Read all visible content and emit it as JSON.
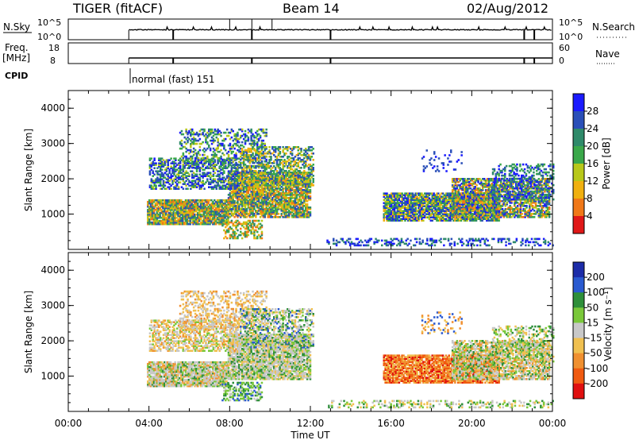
{
  "header": {
    "radar": "TIGER (fitACF)",
    "beam": "Beam 14",
    "date": "02/Aug/2012"
  },
  "status_panels": {
    "nsky_label": "N.Sky",
    "nsky_ticks": [
      "10^5",
      "10^0"
    ],
    "nsearch_label": "N.Search",
    "nsearch_ticks": [
      "10^5",
      "10^0"
    ],
    "freq_label_1": "Freq.",
    "freq_label_2": "[MHz]",
    "freq_ticks": [
      "18",
      "8"
    ],
    "nave_label": "Nave",
    "nave_ticks": [
      "60",
      "0"
    ],
    "cpid_label": "CPID",
    "cpid_value": "normal (fast) 151"
  },
  "chart_data": [
    {
      "type": "heatmap",
      "name": "power",
      "ylabel": "Slant Range [km]",
      "yticks": [
        1000,
        2000,
        3000,
        4000
      ],
      "ylim": [
        0,
        4500
      ],
      "colorbar_label": "Power [dB]",
      "colorbar_ticks": [
        "4",
        "8",
        "12",
        "16",
        "20",
        "24",
        "28"
      ],
      "colors": [
        "#1a1aff",
        "#2a4fb8",
        "#2f8a6a",
        "#3aa84a",
        "#b8c81a",
        "#f0b010",
        "#f07818",
        "#e01818"
      ]
    },
    {
      "type": "heatmap",
      "name": "velocity",
      "ylabel": "Slant Range [km]",
      "yticks": [
        1000,
        2000,
        3000,
        4000
      ],
      "ylim": [
        0,
        4500
      ],
      "colorbar_label": "Velocity [m s⁻¹]",
      "colorbar_ticks": [
        "200",
        "100",
        "50",
        "15",
        "-15",
        "-50",
        "-100",
        "-200"
      ],
      "colors": [
        "#1c2ca8",
        "#2a5ad0",
        "#2e8f3a",
        "#7ac83a",
        "#c8c8c8",
        "#f0c050",
        "#f09030",
        "#f05a10",
        "#e01010"
      ]
    }
  ],
  "x_axis": {
    "ticks": [
      "00:00",
      "04:00",
      "08:00",
      "12:00",
      "16:00",
      "20:00",
      "00:00"
    ],
    "label": "Time UT",
    "range_hours": [
      0,
      24
    ]
  },
  "regions": [
    {
      "t0": 3.9,
      "t1": 7.9,
      "r0": 700,
      "r1": 1400,
      "p": 0.9,
      "pal": [
        1,
        2,
        3,
        4,
        5,
        6
      ],
      "vel": [
        3,
        4,
        4,
        4,
        5,
        6,
        2
      ]
    },
    {
      "t0": 7.9,
      "t1": 12.0,
      "r0": 900,
      "r1": 2200,
      "p": 0.85,
      "pal": [
        1,
        2,
        3,
        4,
        5,
        6
      ],
      "vel": [
        4,
        4,
        4,
        5,
        3,
        2
      ]
    },
    {
      "t0": 4.0,
      "t1": 8.5,
      "r0": 1700,
      "r1": 2600,
      "p": 0.55,
      "pal": [
        0,
        1,
        1,
        2,
        3,
        4
      ],
      "vel": [
        5,
        5,
        6,
        4,
        4,
        3
      ]
    },
    {
      "t0": 5.5,
      "t1": 9.8,
      "r0": 2300,
      "r1": 3400,
      "p": 0.35,
      "pal": [
        0,
        1,
        2,
        3,
        4
      ],
      "vel": [
        5,
        6,
        5,
        4,
        4
      ]
    },
    {
      "t0": 8.5,
      "t1": 12.1,
      "r0": 1800,
      "r1": 2900,
      "p": 0.5,
      "pal": [
        1,
        2,
        3,
        4,
        5
      ],
      "vel": [
        4,
        4,
        5,
        2,
        3,
        1
      ]
    },
    {
      "t0": 7.6,
      "t1": 9.6,
      "r0": 300,
      "r1": 800,
      "p": 0.45,
      "pal": [
        2,
        3,
        4,
        5,
        6
      ],
      "vel": [
        3,
        3,
        2,
        4,
        1
      ]
    },
    {
      "t0": 15.6,
      "t1": 21.3,
      "r0": 800,
      "r1": 1600,
      "p": 0.85,
      "pal": [
        0,
        1,
        2,
        3,
        4,
        5
      ],
      "vel": [
        6,
        7,
        7,
        6,
        8,
        5
      ]
    },
    {
      "t0": 19.0,
      "t1": 23.8,
      "r0": 900,
      "r1": 2000,
      "p": 0.7,
      "pal": [
        0,
        1,
        2,
        3,
        4,
        5,
        6
      ],
      "vel": [
        4,
        4,
        3,
        5,
        6,
        2
      ]
    },
    {
      "t0": 21.0,
      "t1": 24.0,
      "r0": 1400,
      "r1": 2400,
      "p": 0.35,
      "pal": [
        0,
        1,
        2,
        3
      ],
      "vel": [
        4,
        5,
        3,
        2
      ]
    },
    {
      "t0": 12.8,
      "t1": 24.0,
      "r0": 100,
      "r1": 300,
      "p": 0.3,
      "pal": [
        0,
        1,
        2
      ],
      "vel": [
        3,
        4,
        5,
        2
      ]
    },
    {
      "t0": 17.5,
      "t1": 19.5,
      "r0": 2200,
      "r1": 2800,
      "p": 0.15,
      "pal": [
        0,
        1
      ],
      "vel": [
        5,
        6,
        1
      ]
    }
  ]
}
